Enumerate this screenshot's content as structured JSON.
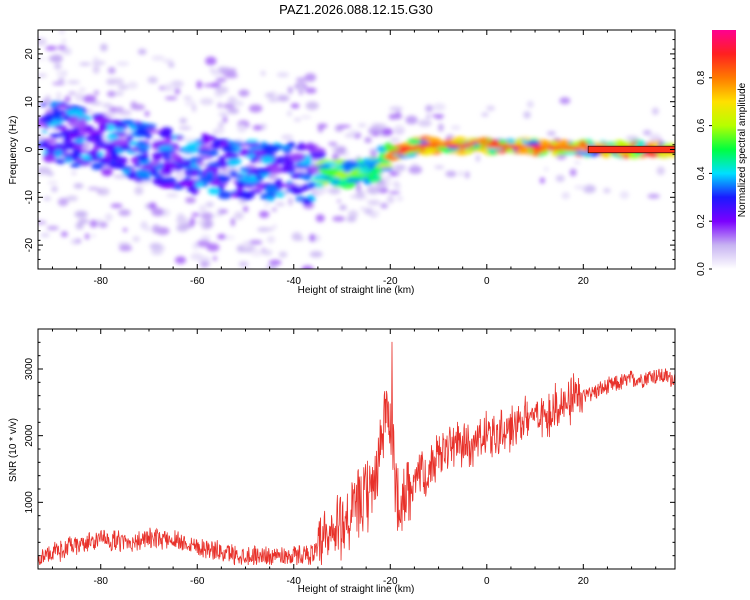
{
  "chart_data": [
    {
      "type": "heatmap",
      "title": "PAZ1.2026.088.12.15.G30",
      "xlabel": "Height of straight line (km)",
      "ylabel": "Frequency (Hz)",
      "xlim": [
        -93,
        39
      ],
      "ylim": [
        -25,
        25
      ],
      "xticks": [
        -80,
        -60,
        -40,
        -20,
        0,
        20
      ],
      "yticks": [
        -20,
        -10,
        0,
        10,
        20
      ],
      "colorbar": {
        "label": "Normalized spectral amplitude",
        "range": [
          0,
          1
        ],
        "ticks": [
          "0.0",
          "0.2",
          "0.4",
          "0.6",
          "0.8"
        ]
      },
      "ridge": [
        {
          "x": -90,
          "y": 4
        },
        {
          "x": -80,
          "y": 1
        },
        {
          "x": -70,
          "y": -1
        },
        {
          "x": -60,
          "y": -3
        },
        {
          "x": -50,
          "y": -4
        },
        {
          "x": -40,
          "y": -5
        },
        {
          "x": -30,
          "y": -5
        },
        {
          "x": -24,
          "y": -4.5
        },
        {
          "x": -20,
          "y": -1
        },
        {
          "x": -15,
          "y": 0.5
        },
        {
          "x": -10,
          "y": 1
        },
        {
          "x": 0,
          "y": 0.8
        },
        {
          "x": 10,
          "y": 0.5
        },
        {
          "x": 20,
          "y": 0.2
        },
        {
          "x": 39,
          "y": 0
        }
      ]
    },
    {
      "type": "line",
      "xlabel": "Height of straight line (km)",
      "ylabel": "SNR (10 * v/v)",
      "xlim": [
        -93,
        39
      ],
      "ylim": [
        0,
        3600
      ],
      "xticks": [
        -80,
        -60,
        -40,
        -20,
        0,
        20
      ],
      "yticks": [
        1000,
        2000,
        3000
      ],
      "color": "#e8312a",
      "series": [
        {
          "name": "SNR",
          "x": [
            -93,
            -90,
            -85,
            -80,
            -75,
            -70,
            -65,
            -60,
            -55,
            -50,
            -45,
            -40,
            -35,
            -32,
            -30,
            -28,
            -26,
            -24,
            -22,
            -21,
            -20,
            -19,
            -18,
            -16,
            -14,
            -12,
            -10,
            -8,
            -6,
            -4,
            -2,
            0,
            2,
            4,
            6,
            8,
            10,
            12,
            14,
            16,
            18,
            20,
            22,
            24,
            26,
            28,
            30,
            32,
            34,
            36,
            39
          ],
          "values": [
            150,
            250,
            350,
            450,
            400,
            450,
            450,
            350,
            250,
            200,
            200,
            200,
            250,
            500,
            700,
            800,
            1000,
            1150,
            1800,
            2400,
            2200,
            1400,
            900,
            1300,
            1500,
            1350,
            1700,
            1800,
            1900,
            1850,
            1900,
            2000,
            2000,
            2050,
            2150,
            2250,
            2300,
            2350,
            2400,
            2450,
            2550,
            2600,
            2650,
            2700,
            2750,
            2800,
            2850,
            2850,
            2900,
            2900,
            2850
          ]
        }
      ]
    }
  ]
}
